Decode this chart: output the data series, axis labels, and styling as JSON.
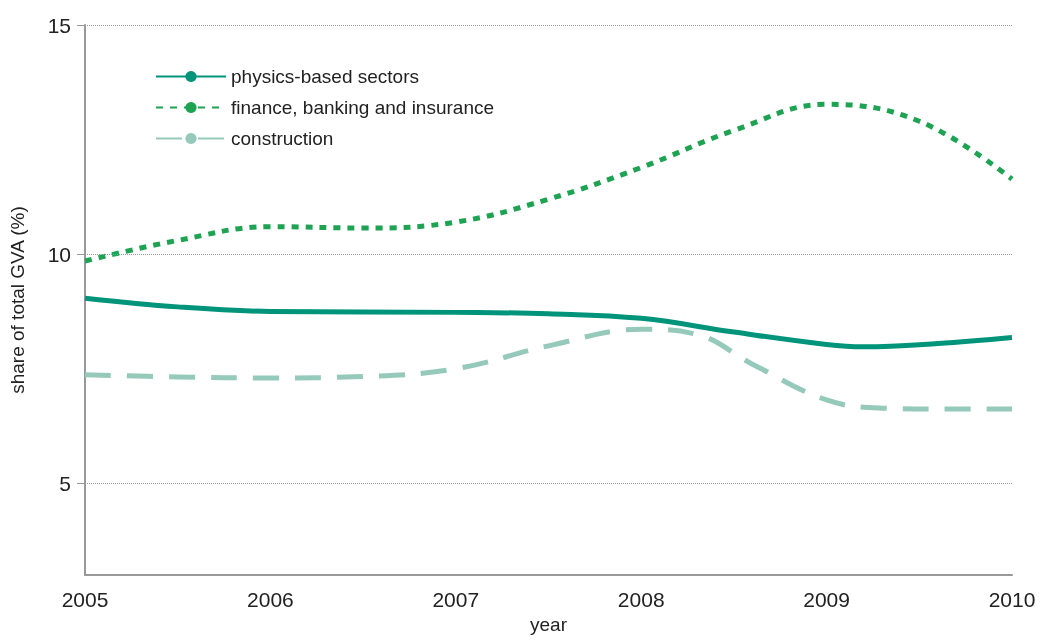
{
  "chart_data": {
    "type": "line",
    "xlabel": "year",
    "ylabel": "share of total GVA (%)",
    "xlim": [
      2005,
      2010
    ],
    "xticks": [
      2005,
      2006,
      2007,
      2008,
      2009,
      2010
    ],
    "ylim": [
      3,
      15
    ],
    "yticks": [
      5,
      10,
      15
    ],
    "grid": "y",
    "legend": "top left",
    "marker": "none",
    "series": [
      {
        "name": "physics-based sectors",
        "color": "#00957a",
        "line_style": "solid",
        "x": [
          2005,
          2005.5,
          2006,
          2007,
          2007.5,
          2008,
          2008.5,
          2009,
          2009.2,
          2009.6,
          2010
        ],
        "values": [
          9.04,
          8.85,
          8.75,
          8.73,
          8.7,
          8.6,
          8.3,
          8.03,
          7.98,
          8.05,
          8.18
        ]
      },
      {
        "name": "finance, banking and insurance",
        "color": "#1ea352",
        "line_style": "dotted",
        "x": [
          2005,
          2005.5,
          2006,
          2006.5,
          2007,
          2007.5,
          2008,
          2008.5,
          2009,
          2009.5,
          2010
        ],
        "values": [
          9.85,
          10.3,
          10.6,
          10.57,
          10.7,
          11.2,
          11.89,
          12.7,
          13.27,
          12.9,
          11.64
        ]
      },
      {
        "name": "construction",
        "color": "#95c9b9",
        "line_style": "dashed",
        "x": [
          2005,
          2005.5,
          2006,
          2006.5,
          2007,
          2007.5,
          2008,
          2008.3,
          2008.6,
          2009,
          2009.3,
          2009.6,
          2010
        ],
        "values": [
          7.37,
          7.32,
          7.3,
          7.33,
          7.5,
          8.0,
          8.36,
          8.25,
          7.6,
          6.82,
          6.64,
          6.62,
          6.62
        ]
      }
    ]
  }
}
